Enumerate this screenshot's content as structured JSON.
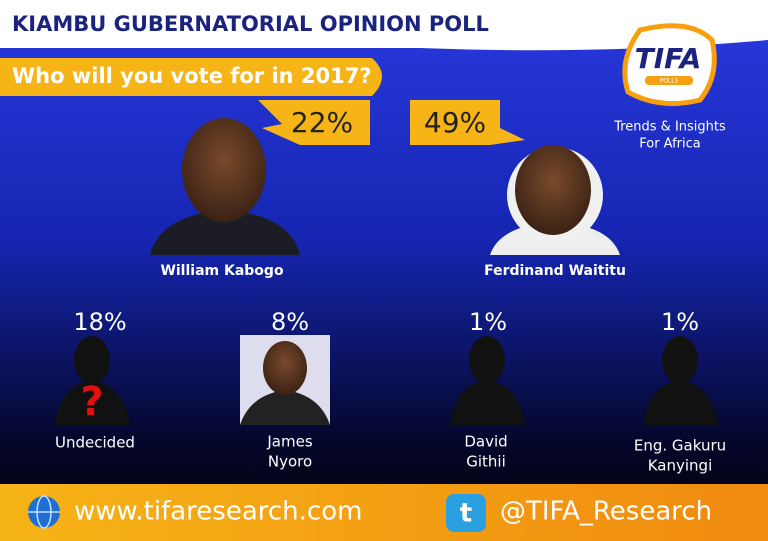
{
  "header": {
    "title": "KIAMBU GUBERNATORIAL OPINION POLL",
    "question": "Who will you vote for in 2017?"
  },
  "logo": {
    "name": "TIFA",
    "sub": "POLLS",
    "tagline": [
      "Trends & Insights",
      "For Africa"
    ]
  },
  "leaders": [
    {
      "name": "William Kabogo",
      "share": "22%"
    },
    {
      "name": "Ferdinand Waititu",
      "share": "49%"
    }
  ],
  "others": [
    {
      "name": [
        "Undecided"
      ],
      "share": "18%"
    },
    {
      "name": [
        "James",
        "Nyoro"
      ],
      "share": "8%"
    },
    {
      "name": [
        "David",
        "Githii"
      ],
      "share": "1%"
    },
    {
      "name": [
        "Eng. Gakuru",
        "Kanyingi"
      ],
      "share": "1%"
    }
  ],
  "undecided_mark": "?",
  "footer": {
    "website": "www.tifaresearch.com",
    "twitter": "@TIFA_Research"
  }
}
